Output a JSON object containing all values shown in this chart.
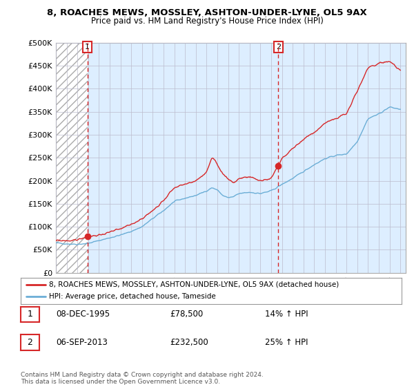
{
  "title": "8, ROACHES MEWS, MOSSLEY, ASHTON-UNDER-LYNE, OL5 9AX",
  "subtitle": "Price paid vs. HM Land Registry's House Price Index (HPI)",
  "legend_line1": "8, ROACHES MEWS, MOSSLEY, ASHTON-UNDER-LYNE, OL5 9AX (detached house)",
  "legend_line2": "HPI: Average price, detached house, Tameside",
  "annotation1_date": "08-DEC-1995",
  "annotation1_price": "£78,500",
  "annotation1_hpi": "14% ↑ HPI",
  "annotation2_date": "06-SEP-2013",
  "annotation2_price": "£232,500",
  "annotation2_hpi": "25% ↑ HPI",
  "footer": "Contains HM Land Registry data © Crown copyright and database right 2024.\nThis data is licensed under the Open Government Licence v3.0.",
  "hpi_color": "#6baed6",
  "price_color": "#d62728",
  "marker_color": "#d62728",
  "vline_color": "#d62728",
  "annotation_box_color": "#d62728",
  "plot_bg_color": "#ddeeff",
  "hatch_bg_color": "#cccccc",
  "background_color": "#ffffff",
  "grid_color": "#bbbbcc",
  "ylim": [
    0,
    500000
  ],
  "yticks": [
    0,
    50000,
    100000,
    150000,
    200000,
    250000,
    300000,
    350000,
    400000,
    450000,
    500000
  ],
  "xlim_start": 1993.0,
  "xlim_end": 2025.5,
  "sale1_x": 1995.92,
  "sale1_y": 78500,
  "sale2_x": 2013.67,
  "sale2_y": 232500,
  "hpi_anchors_x": [
    1993.0,
    1994.0,
    1995.0,
    1996.0,
    1997.0,
    1998.0,
    1999.0,
    2000.0,
    2001.0,
    2002.0,
    2003.0,
    2004.0,
    2005.0,
    2006.0,
    2007.0,
    2007.5,
    2008.0,
    2008.5,
    2009.0,
    2009.5,
    2010.0,
    2011.0,
    2012.0,
    2013.0,
    2014.0,
    2015.0,
    2016.0,
    2017.0,
    2018.0,
    2019.0,
    2020.0,
    2021.0,
    2022.0,
    2023.0,
    2024.0,
    2025.0
  ],
  "hpi_anchors_y": [
    65000,
    63000,
    62000,
    64000,
    70000,
    76000,
    82000,
    90000,
    100000,
    118000,
    135000,
    155000,
    162000,
    168000,
    178000,
    185000,
    180000,
    168000,
    163000,
    165000,
    172000,
    175000,
    172000,
    178000,
    192000,
    205000,
    220000,
    235000,
    248000,
    255000,
    258000,
    285000,
    335000,
    345000,
    360000,
    355000
  ],
  "pp_anchors_x": [
    1993.0,
    1994.5,
    1995.0,
    1995.92,
    1997.0,
    1998.0,
    1999.0,
    2000.0,
    2001.0,
    2002.0,
    2003.0,
    2004.0,
    2005.0,
    2006.0,
    2007.0,
    2007.5,
    2008.0,
    2008.5,
    2009.0,
    2009.5,
    2010.0,
    2011.0,
    2012.0,
    2013.0,
    2013.67,
    2014.0,
    2015.0,
    2016.0,
    2017.0,
    2018.0,
    2019.0,
    2020.0,
    2021.0,
    2022.0,
    2023.0,
    2024.0,
    2025.0
  ],
  "pp_anchors_y": [
    70000,
    70000,
    72000,
    78500,
    82000,
    88000,
    95000,
    105000,
    118000,
    135000,
    158000,
    185000,
    192000,
    200000,
    218000,
    250000,
    235000,
    215000,
    205000,
    195000,
    205000,
    208000,
    200000,
    205000,
    232500,
    248000,
    270000,
    290000,
    305000,
    325000,
    335000,
    345000,
    395000,
    445000,
    455000,
    460000,
    440000
  ]
}
